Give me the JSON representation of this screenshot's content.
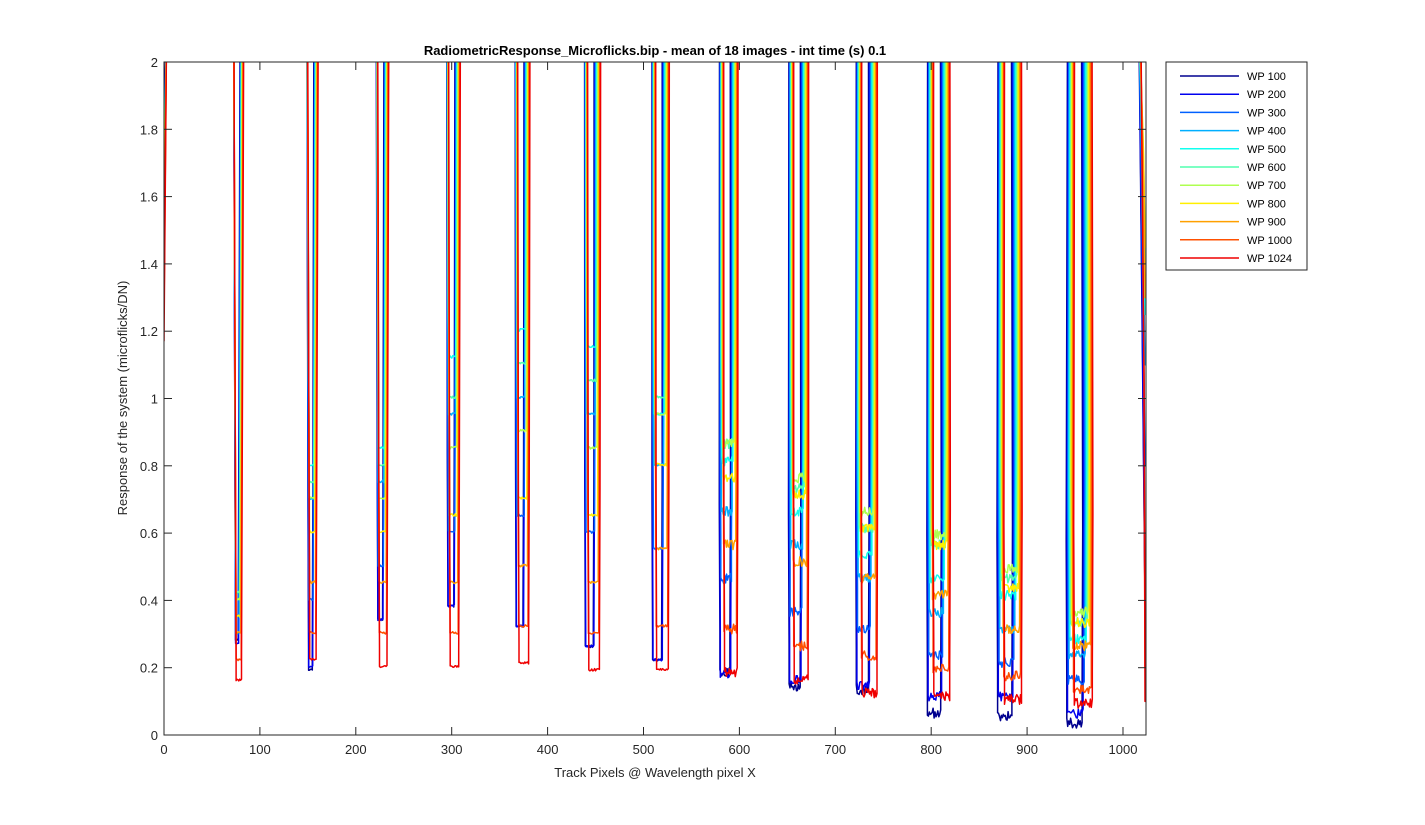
{
  "chart_data": {
    "type": "line",
    "title": "RadiometricResponse_Microflicks.bip - mean of 18 images - int time (s) 0.1",
    "xlabel": "Track Pixels @ Wavelength pixel X",
    "ylabel": "Response of the system (microflicks/DN)",
    "xlim": [
      0,
      1024
    ],
    "ylim": [
      0,
      2
    ],
    "xticks": [
      0,
      100,
      200,
      300,
      400,
      500,
      600,
      700,
      800,
      900,
      1000
    ],
    "xtick_labels": [
      "0",
      "100",
      "200",
      "300",
      "400",
      "500",
      "600",
      "700",
      "800",
      "900",
      "1000"
    ],
    "yticks": [
      0,
      0.2,
      0.4,
      0.6,
      0.8,
      1,
      1.2,
      1.4,
      1.6,
      1.8,
      2
    ],
    "ytick_labels": [
      "0",
      "0.2",
      "0.4",
      "0.6",
      "0.8",
      "1",
      "1.2",
      "1.4",
      "1.6",
      "1.8",
      "2"
    ],
    "grid": false,
    "legend_position": "outside-top-right",
    "series": [
      {
        "name": "WP 100",
        "color": "#00008f"
      },
      {
        "name": "WP 200",
        "color": "#0000ef"
      },
      {
        "name": "WP 300",
        "color": "#0060ff"
      },
      {
        "name": "WP 400",
        "color": "#00afff"
      },
      {
        "name": "WP 500",
        "color": "#10ffef"
      },
      {
        "name": "WP 600",
        "color": "#50ffaf"
      },
      {
        "name": "WP 700",
        "color": "#afff50"
      },
      {
        "name": "WP 800",
        "color": "#ffef00"
      },
      {
        "name": "WP 900",
        "color": "#ffa000"
      },
      {
        "name": "WP 1000",
        "color": "#ff5000"
      },
      {
        "name": "WP 1024",
        "color": "#ef0000"
      }
    ],
    "dips": [
      {
        "center": 77,
        "mins": [
          0.28,
          0.27,
          0.3,
          0.35,
          0.4,
          0.42,
          0.4,
          0.35,
          0.3,
          0.22,
          0.16
        ]
      },
      {
        "center": 154,
        "mins": [
          0.19,
          0.2,
          0.4,
          0.7,
          0.8,
          0.75,
          0.7,
          0.6,
          0.45,
          0.3,
          0.22
        ]
      },
      {
        "center": 227,
        "mins": [
          0.34,
          0.34,
          0.5,
          0.75,
          0.85,
          0.8,
          0.7,
          0.6,
          0.45,
          0.3,
          0.2
        ]
      },
      {
        "center": 301,
        "mins": [
          0.38,
          0.38,
          0.6,
          0.95,
          1.12,
          1.0,
          0.85,
          0.65,
          0.45,
          0.3,
          0.2
        ]
      },
      {
        "center": 373,
        "mins": [
          0.32,
          0.32,
          0.65,
          1.0,
          1.2,
          1.1,
          0.9,
          0.7,
          0.5,
          0.32,
          0.21
        ]
      },
      {
        "center": 446,
        "mins": [
          0.26,
          0.26,
          0.6,
          0.95,
          1.15,
          1.05,
          0.85,
          0.65,
          0.45,
          0.3,
          0.19
        ]
      },
      {
        "center": 517,
        "mins": [
          0.22,
          0.22,
          0.55,
          0.8,
          0.95,
          1.0,
          0.95,
          0.8,
          0.55,
          0.32,
          0.19
        ]
      },
      {
        "center": 588,
        "mins": [
          0.17,
          0.17,
          0.45,
          0.65,
          0.8,
          0.85,
          0.85,
          0.75,
          0.55,
          0.3,
          0.17
        ]
      },
      {
        "center": 661,
        "mins": [
          0.13,
          0.15,
          0.35,
          0.55,
          0.65,
          0.72,
          0.75,
          0.7,
          0.5,
          0.25,
          0.15
        ]
      },
      {
        "center": 732,
        "mins": [
          0.12,
          0.13,
          0.3,
          0.45,
          0.52,
          0.6,
          0.65,
          0.6,
          0.45,
          0.22,
          0.11
        ]
      },
      {
        "center": 807,
        "mins": [
          0.05,
          0.1,
          0.22,
          0.35,
          0.45,
          0.55,
          0.58,
          0.55,
          0.4,
          0.18,
          0.1
        ]
      },
      {
        "center": 881,
        "mins": [
          0.04,
          0.1,
          0.2,
          0.3,
          0.4,
          0.45,
          0.48,
          0.42,
          0.3,
          0.16,
          0.09
        ]
      },
      {
        "center": 954,
        "mins": [
          0.02,
          0.05,
          0.15,
          0.22,
          0.27,
          0.32,
          0.35,
          0.32,
          0.25,
          0.12,
          0.08
        ]
      }
    ],
    "right_edge_values": [
      0.4,
      0.4,
      0.8,
      1.1,
      1.25,
      1.4,
      1.5,
      1.45,
      1.3,
      0.2,
      0.1
    ],
    "left_edge_values": [
      1.8,
      1.7,
      1.65,
      1.6,
      1.55,
      1.5,
      1.45,
      1.4,
      1.35,
      1.25,
      1.17
    ]
  }
}
